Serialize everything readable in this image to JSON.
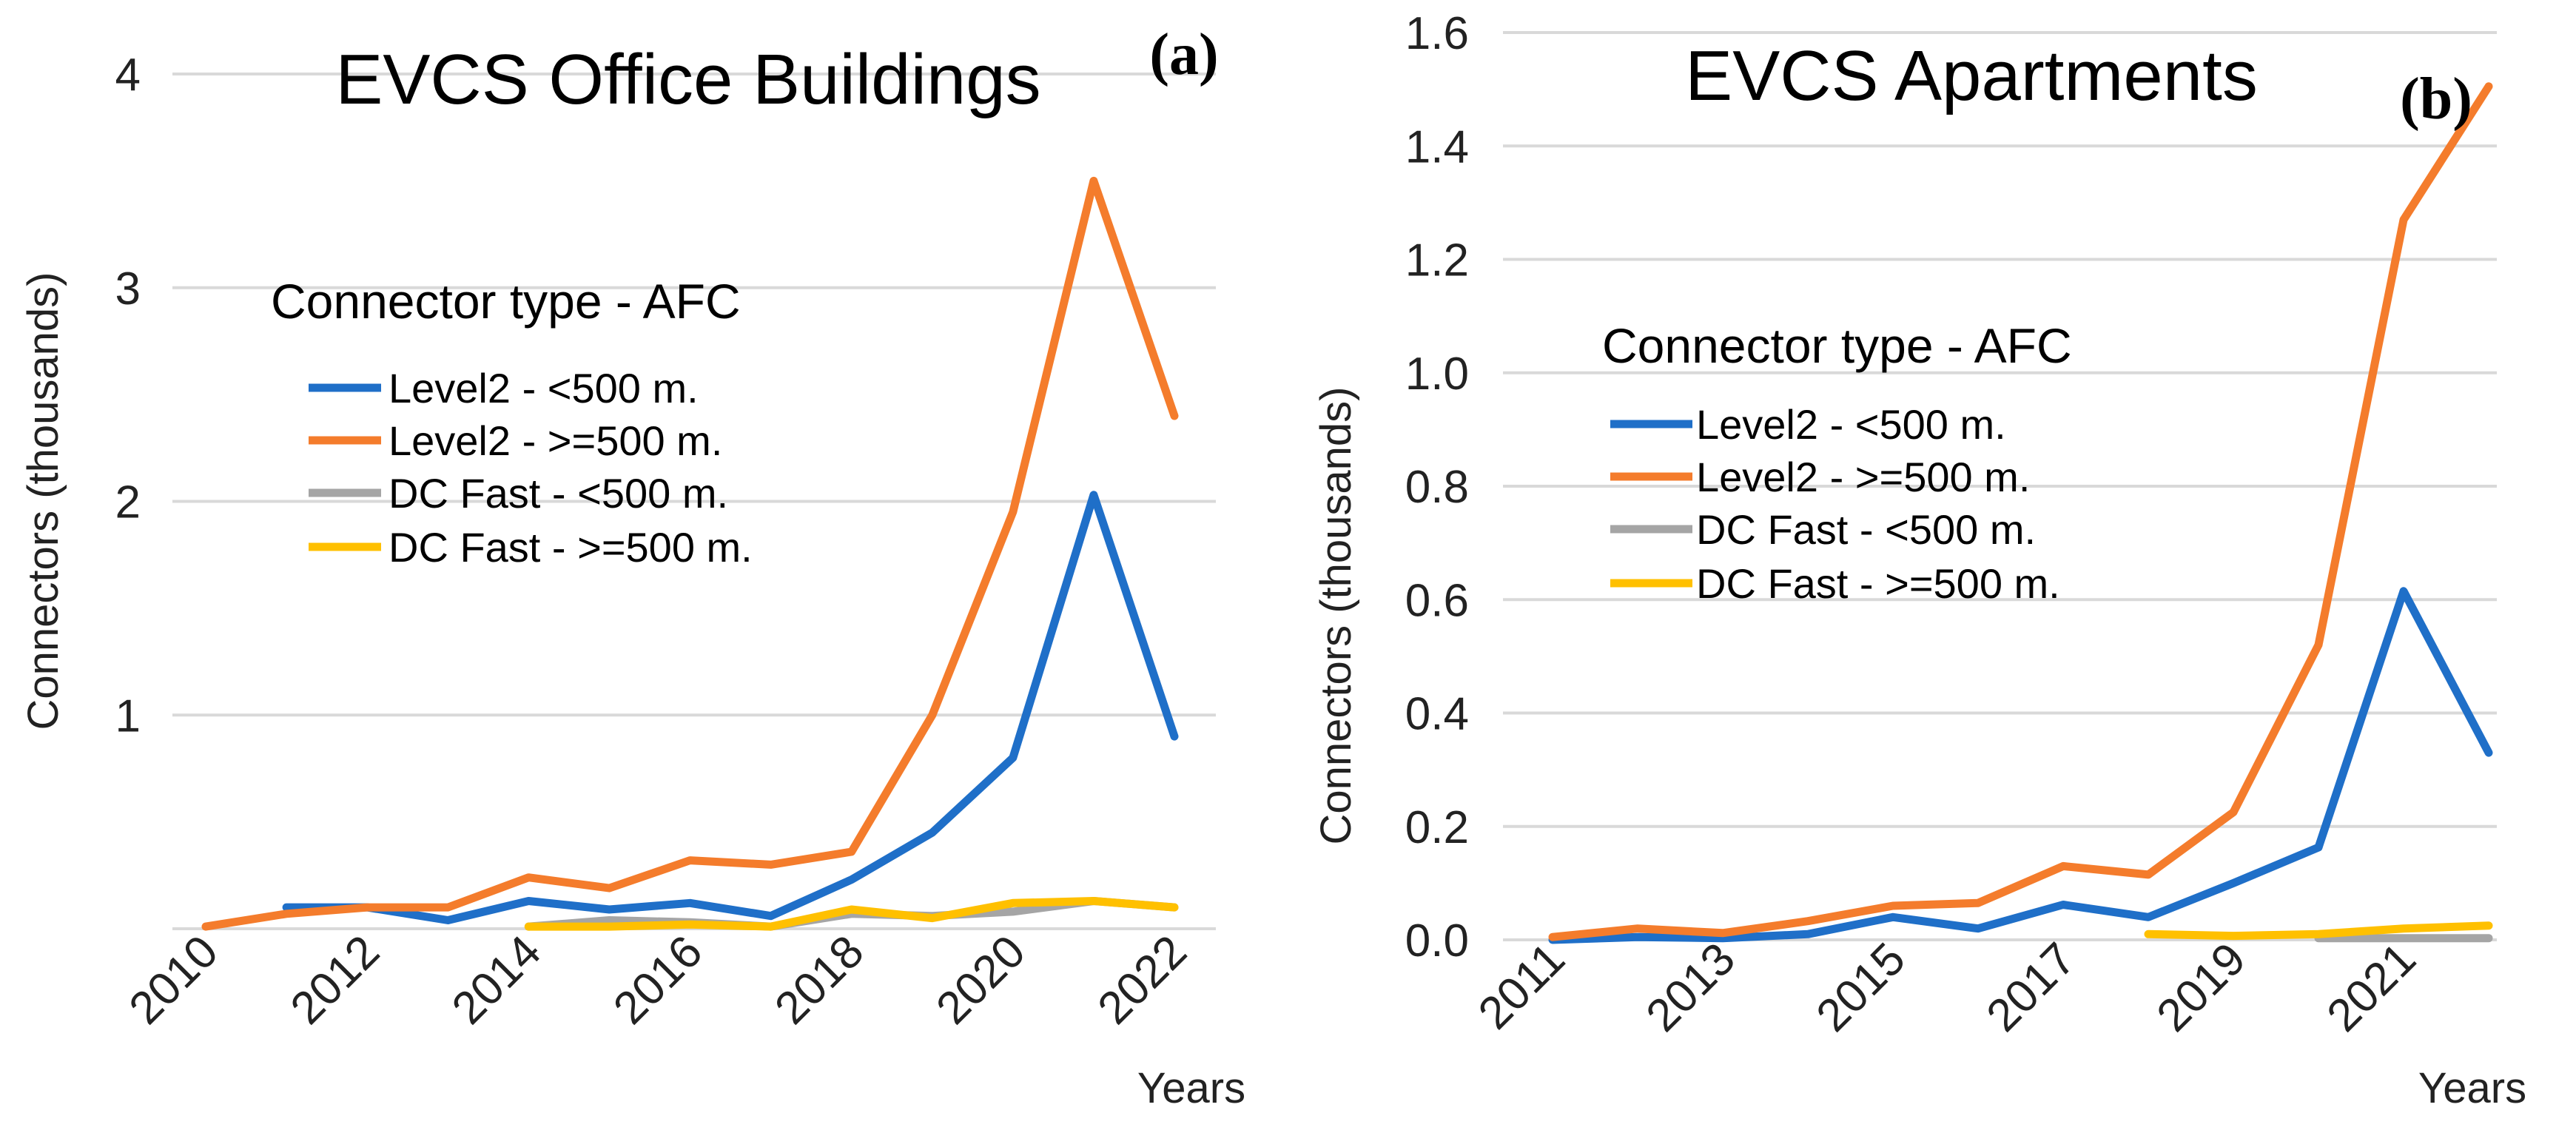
{
  "chart_data": [
    {
      "type": "line",
      "panel_label": "(a)",
      "title": "EVCS Office Buildings",
      "xlabel": "Years",
      "ylabel": "Connectors  (thousands)",
      "legend_title": "Connector type - AFC",
      "x": [
        2010,
        2011,
        2012,
        2013,
        2014,
        2015,
        2016,
        2017,
        2018,
        2019,
        2020,
        2021,
        2022
      ],
      "xticks": [
        "2010",
        "2012",
        "2014",
        "2016",
        "2018",
        "2020",
        "2022"
      ],
      "yticks": [
        "1",
        "2",
        "3",
        "4"
      ],
      "ylim": [
        0,
        4
      ],
      "grid": true,
      "series": [
        {
          "name": "Level2 - <500 m.",
          "color": "#1f6fc8",
          "values": [
            null,
            0.1,
            0.1,
            0.04,
            0.13,
            0.09,
            0.12,
            0.06,
            0.23,
            0.45,
            0.8,
            2.03,
            0.9
          ]
        },
        {
          "name": "Level2 - >=500 m.",
          "color": "#f47c2c",
          "values": [
            0.01,
            0.07,
            0.1,
            0.1,
            0.24,
            0.19,
            0.32,
            0.3,
            0.36,
            1.0,
            1.95,
            3.5,
            2.4
          ]
        },
        {
          "name": "DC Fast - <500 m.",
          "color": "#a5a5a5",
          "values": [
            null,
            null,
            null,
            null,
            0.01,
            0.04,
            0.03,
            0.01,
            0.07,
            0.06,
            0.08,
            0.13,
            0.1
          ]
        },
        {
          "name": "DC Fast - >=500 m.",
          "color": "#ffc000",
          "values": [
            null,
            null,
            null,
            null,
            0.01,
            0.01,
            0.02,
            0.01,
            0.09,
            0.05,
            0.12,
            0.13,
            0.1
          ]
        }
      ]
    },
    {
      "type": "line",
      "panel_label": "(b)",
      "title": "EVCS Apartments",
      "xlabel": "Years",
      "ylabel": "Connectors  (thousands)",
      "legend_title": "Connector type - AFC",
      "x": [
        2011,
        2012,
        2013,
        2014,
        2015,
        2016,
        2017,
        2018,
        2019,
        2020,
        2021,
        2022
      ],
      "xticks": [
        "2011",
        "2013",
        "2015",
        "2017",
        "2019",
        "2021"
      ],
      "yticks": [
        "0.0",
        "0.2",
        "0.4",
        "0.6",
        "0.8",
        "1.0",
        "1.2",
        "1.4",
        "1.6"
      ],
      "ylim": [
        0,
        1.6
      ],
      "grid": true,
      "series": [
        {
          "name": "Level2 - <500 m.",
          "color": "#1f6fc8",
          "values": [
            0.0,
            0.005,
            0.003,
            0.01,
            0.04,
            0.02,
            0.062,
            0.04,
            0.1,
            0.163,
            0.615,
            0.33
          ]
        },
        {
          "name": "Level2 - >=500 m.",
          "color": "#f47c2c",
          "values": [
            0.005,
            0.02,
            0.012,
            0.033,
            0.06,
            0.065,
            0.13,
            0.115,
            0.225,
            0.52,
            1.27,
            1.505
          ]
        },
        {
          "name": "DC Fast - <500 m.",
          "color": "#a5a5a5",
          "values": [
            null,
            null,
            null,
            null,
            null,
            null,
            null,
            null,
            null,
            0.003,
            0.003,
            0.003
          ]
        },
        {
          "name": "DC Fast - >=500 m.",
          "color": "#ffc000",
          "values": [
            null,
            null,
            null,
            null,
            null,
            null,
            null,
            0.01,
            0.007,
            0.01,
            0.02,
            0.025
          ]
        }
      ]
    }
  ]
}
